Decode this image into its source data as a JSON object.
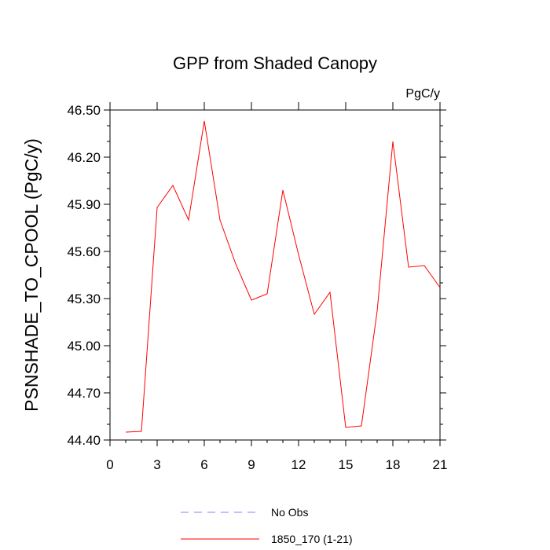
{
  "chart_data": {
    "type": "line",
    "title": "GPP from Shaded Canopy",
    "units_label": "PgC/y",
    "ylabel": "PSNSHADE_TO_CPOOL  (PgC/y)",
    "xlabel": "",
    "xlim": [
      0,
      21
    ],
    "ylim": [
      44.4,
      46.5
    ],
    "x_ticks": [
      0,
      3,
      6,
      9,
      12,
      15,
      18,
      21
    ],
    "x_tick_labels": [
      "0",
      "3",
      "6",
      "9",
      "12",
      "15",
      "18",
      "21"
    ],
    "y_ticks": [
      44.4,
      44.7,
      45.0,
      45.3,
      45.6,
      45.9,
      46.2,
      46.5
    ],
    "y_tick_labels": [
      "44.40",
      "44.70",
      "45.00",
      "45.30",
      "45.60",
      "45.90",
      "46.20",
      "46.50"
    ],
    "grid": false,
    "legend_position": "bottom",
    "series": [
      {
        "name": "1850_170 (1-21)",
        "color": "#ff0000",
        "style": "solid",
        "x": [
          1,
          2,
          3,
          4,
          5,
          6,
          7,
          8,
          9,
          10,
          11,
          12,
          13,
          14,
          15,
          16,
          17,
          18,
          19,
          20,
          21
        ],
        "y": [
          44.45,
          44.455,
          45.88,
          46.02,
          45.8,
          46.43,
          45.8,
          45.52,
          45.29,
          45.33,
          45.99,
          45.58,
          45.2,
          45.34,
          44.48,
          44.49,
          45.22,
          46.3,
          45.5,
          45.51,
          45.37
        ]
      }
    ],
    "legend": [
      {
        "label": "No Obs",
        "color": "#8080ff",
        "style": "dashed"
      },
      {
        "label": "1850_170 (1-21)",
        "color": "#ff0000",
        "style": "solid"
      }
    ]
  }
}
